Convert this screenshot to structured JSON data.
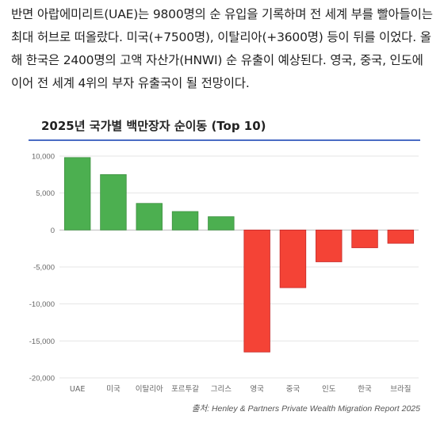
{
  "article": {
    "paragraph": "반면 아랍에미리트(UAE)는 9800명의 순 유입을 기록하며 전 세계 부를 빨아들이는 최대 허브로 떠올랐다. 미국(+7500명), 이탈리아(+3600명) 등이 뒤를 이었다. 올해 한국은 2400명의 고액 자산가(HNWI) 순 유출이 예상된다. 영국, 중국, 인도에 이어 전 세계 4위의 부자 유출국이 될 전망이다."
  },
  "chart_data": {
    "type": "bar",
    "title": "2025년 국가별 백만장자 순이동 (Top 10)",
    "categories": [
      "UAE",
      "미국",
      "이탈리아",
      "포르투갈",
      "그리스",
      "영국",
      "중국",
      "인도",
      "한국",
      "브라질"
    ],
    "values": [
      9800,
      7500,
      3600,
      2500,
      1800,
      -16500,
      -7800,
      -4300,
      -2400,
      -1800
    ],
    "ylim": [
      -20000,
      10000
    ],
    "yticks": [
      10000,
      5000,
      0,
      -5000,
      -10000,
      -15000,
      -20000
    ],
    "ytick_labels": [
      "10,000",
      "5,000",
      "0",
      "-5,000",
      "-10,000",
      "-15,000",
      "-20,000"
    ],
    "grid": true,
    "colors": {
      "positive": "#4caf50",
      "negative": "#f44336"
    },
    "source": "출처: Henley & Partners Private Wealth Migration Report 2025"
  }
}
